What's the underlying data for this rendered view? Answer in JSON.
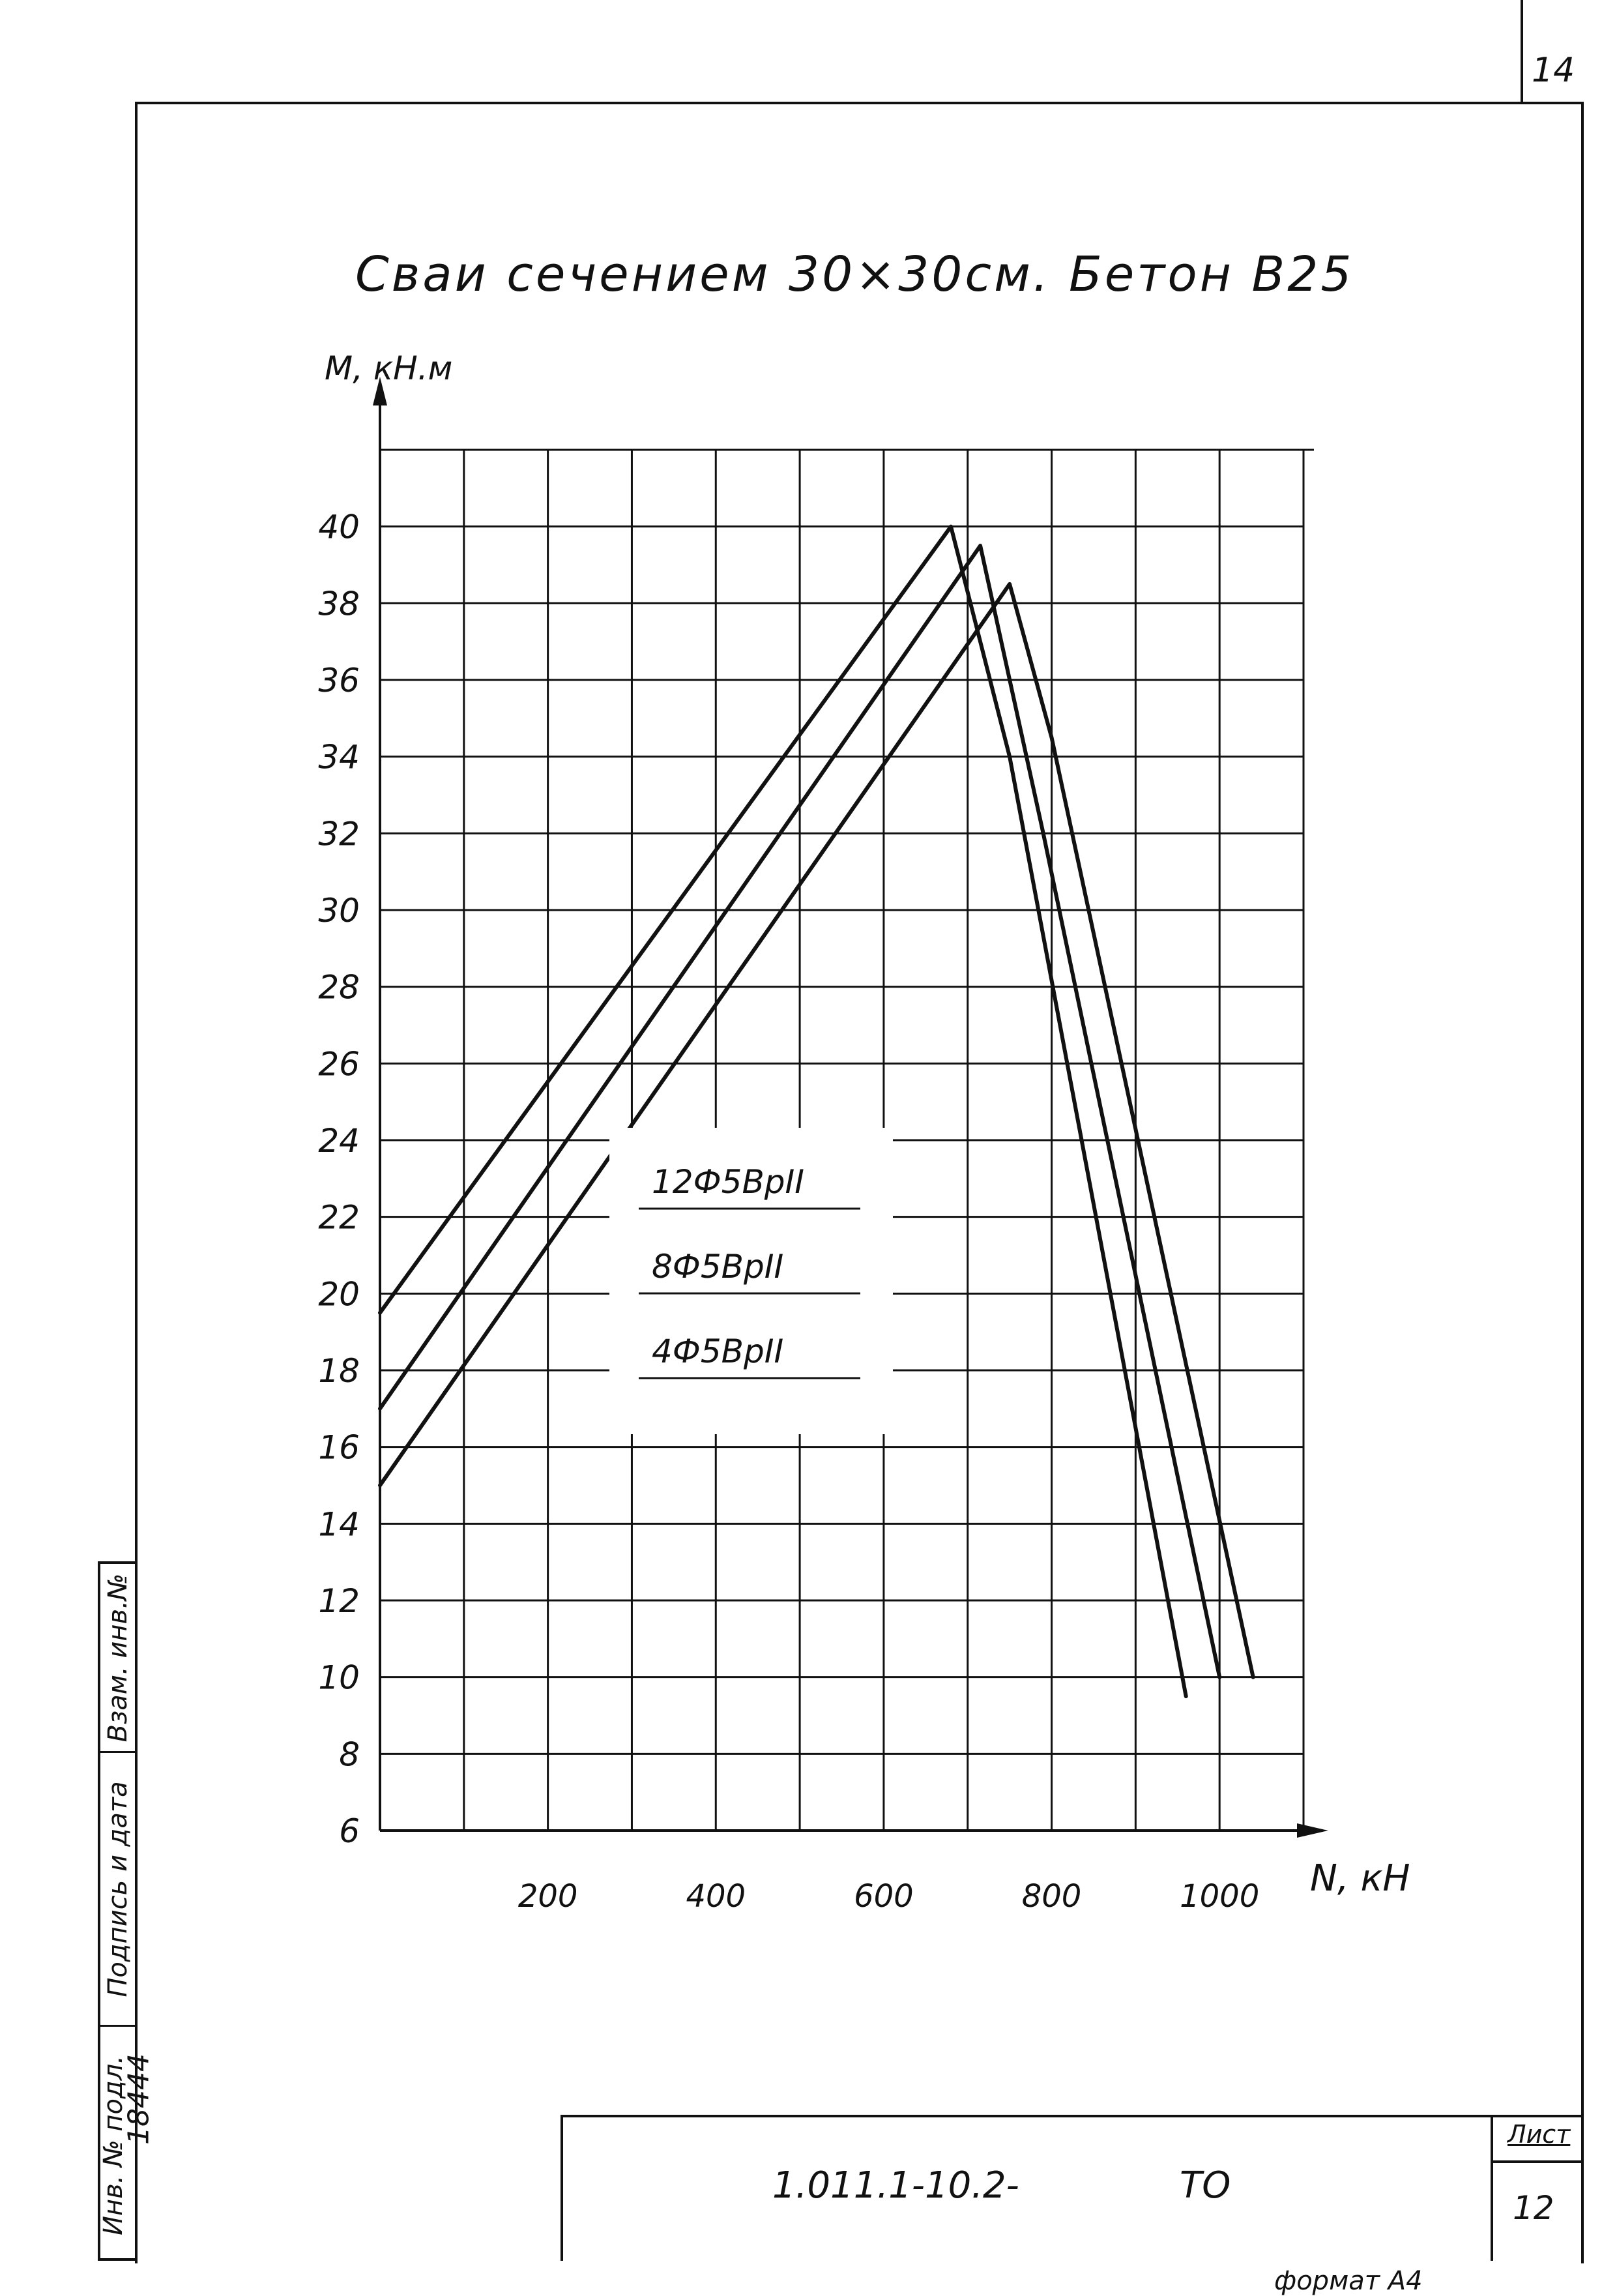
{
  "sheet": {
    "page_number": "14",
    "side_stamp": {
      "col1": "Взам. инв.№",
      "col2": "Подпись и дата",
      "col3": "Инв. № подл.",
      "inv_number": "18444"
    },
    "title_block": {
      "doc_code": "1.011.1-10.2-",
      "doc_suffix": "ТО",
      "sheet_label": "Лист",
      "sheet_number": "12"
    },
    "format_label": "формат А4"
  },
  "chart_data": {
    "type": "line",
    "title": "Сваи сечением 30×30см. Бетон В25",
    "ylabel": "М, кН.м",
    "xlabel": "N, кН",
    "xlim": [
      0,
      1100
    ],
    "ylim": [
      6,
      42
    ],
    "xticks": [
      "200",
      "400",
      "600",
      "800",
      "1000"
    ],
    "yticks": [
      "6",
      "8",
      "10",
      "12",
      "14",
      "16",
      "18",
      "20",
      "22",
      "24",
      "26",
      "28",
      "30",
      "32",
      "34",
      "36",
      "38",
      "40"
    ],
    "grid": true,
    "series": [
      {
        "name": "12Ф5ВрII",
        "points": [
          [
            0,
            19.5
          ],
          [
            680,
            40
          ],
          [
            750,
            34
          ],
          [
            960,
            9.5
          ]
        ]
      },
      {
        "name": "8Ф5ВрII",
        "points": [
          [
            0,
            17
          ],
          [
            715,
            39.5
          ],
          [
            790,
            32
          ],
          [
            1000,
            10
          ]
        ]
      },
      {
        "name": "4Ф5ВрII",
        "points": [
          [
            0,
            15
          ],
          [
            750,
            38.5
          ],
          [
            800,
            34.5
          ],
          [
            1040,
            10
          ]
        ]
      }
    ]
  }
}
